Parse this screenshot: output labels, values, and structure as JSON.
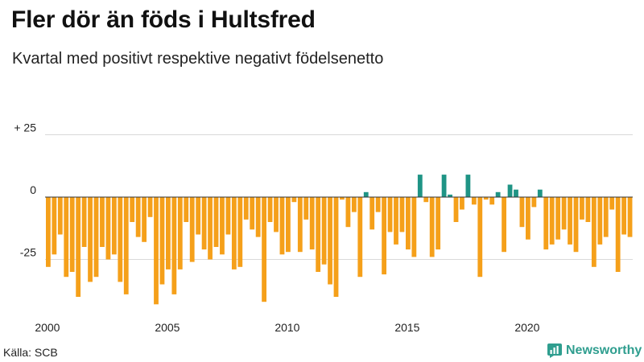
{
  "header": {
    "title": "Fler dör än föds i Hultsfred",
    "subtitle": "Kvartal med positivt respektive negativt födelsenetto"
  },
  "footer": {
    "source": "Källa: SCB",
    "brand": "Newsworthy"
  },
  "colors": {
    "negative": "#f5a01a",
    "positive": "#1f9485",
    "grid": "#d9d9d9",
    "zero_line": "#333333",
    "brand": "#2f9e8f"
  },
  "chart_data": {
    "type": "bar",
    "title": "Fler dör än föds i Hultsfred",
    "subtitle": "Kvartal med positivt respektive negativt födelsenetto",
    "xlabel": "",
    "ylabel": "",
    "ylim": [
      -45,
      27
    ],
    "start_year": 2000,
    "periods_per_year": 4,
    "y_ticks": [
      {
        "value": 25,
        "label": "+ 25"
      },
      {
        "value": 0,
        "label": "0"
      },
      {
        "value": -25,
        "label": "-25"
      }
    ],
    "x_ticks": [
      {
        "index": 0,
        "label": "2000"
      },
      {
        "index": 20,
        "label": "2005"
      },
      {
        "index": 40,
        "label": "2010"
      },
      {
        "index": 60,
        "label": "2015"
      },
      {
        "index": 80,
        "label": "2020"
      }
    ],
    "values": [
      -28,
      -23,
      -15,
      -32,
      -30,
      -40,
      -20,
      -34,
      -32,
      -20,
      -25,
      -23,
      -34,
      -39,
      -10,
      -16,
      -18,
      -8,
      -43,
      -35,
      -29,
      -39,
      -29,
      -10,
      -26,
      -15,
      -21,
      -25,
      -20,
      -23,
      -15,
      -29,
      -28,
      -9,
      -13,
      -16,
      -42,
      -10,
      -14,
      -23,
      -22,
      -2,
      -22,
      -9,
      -21,
      -30,
      -27,
      -35,
      -40,
      -1,
      -12,
      -6,
      -32,
      2,
      -13,
      -6,
      -31,
      -14,
      -19,
      -14,
      -21,
      -24,
      9,
      -2,
      -24,
      -21,
      9,
      1,
      -10,
      -5,
      9,
      -3,
      -32,
      -1,
      -3,
      2,
      -22,
      5,
      3,
      -12,
      -17,
      -4,
      3,
      -21,
      -19,
      -17,
      -13,
      -19,
      -22,
      -9,
      -10,
      -28,
      -19,
      -16,
      -5,
      -30,
      -15,
      -16
    ]
  }
}
